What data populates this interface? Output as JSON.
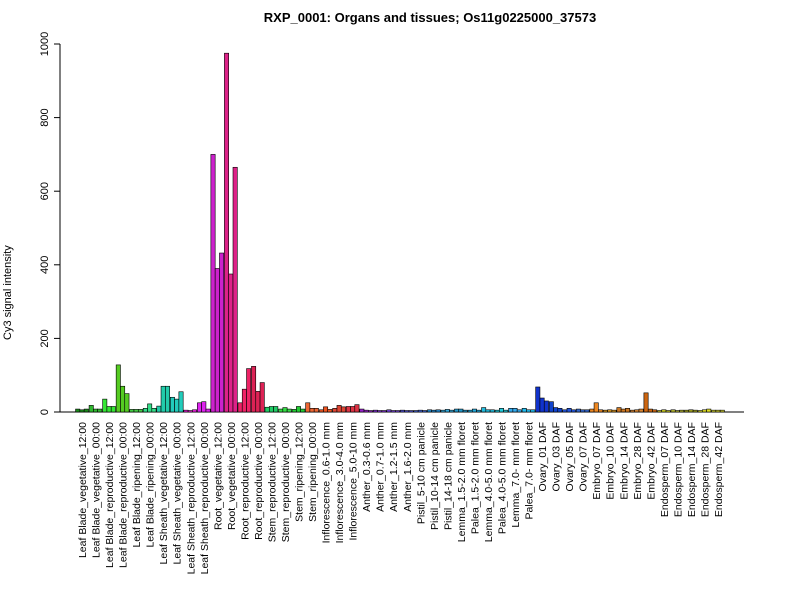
{
  "chart_data": {
    "type": "bar",
    "title": "RXP_0001: Organs and tissues; Os11g0225000_37573",
    "xlabel": "",
    "ylabel": "Cy3 signal intensity",
    "ylim": [
      0,
      1000
    ],
    "yticks": [
      0,
      200,
      400,
      600,
      800,
      1000
    ],
    "grid": false,
    "categories": [
      "Leaf Blade_vegetative_12:00",
      "Leaf Blade_vegetative_00:00",
      "Leaf Blade_reproductive_12:00",
      "Leaf Blade_reproductive_00:00",
      "Leaf Blade_ripening_12:00",
      "Leaf Blade_ripening_00:00",
      "Leaf Sheath_vegetative_12:00",
      "Leaf Sheath_vegetative_00:00",
      "Leaf Sheath_reproductive_12:00",
      "Leaf Sheath_reproductive_00:00",
      "Root_vegetative_12:00",
      "Root_vegetative_00:00",
      "Root_reproductive_12:00",
      "Root_reproductive_00:00",
      "Stem_reproductive_12:00",
      "Stem_reproductive_00:00",
      "Stem_ripening_12:00",
      "Stem_ripening_00:00",
      "Inflorescence_0.6-1.0 mm",
      "Inflorescence_3.0-4.0 mm",
      "Inflorescence_5.0-10 mm",
      "Anther_0.3-0.6 mm",
      "Anther_0.7-1.0 mm",
      "Anther_1.2-1.5 mm",
      "Anther_1.6-2.0 mm",
      "Pistil_5-10 cm panicle",
      "Pistil_10-14 cm panicle",
      "Pistil_14-18 cm panicle",
      "Lemma_1.5-2.0 mm floret",
      "Palea_1.5-2.0 mm floret",
      "Lemma_4.0-5.0 mm floret",
      "Palea_4.0-5.0 mm floret",
      "Lemma_7.0- mm floret",
      "Palea_7.0- mm floret",
      "Ovary_01 DAF",
      "Ovary_03 DAF",
      "Ovary_05 DAF",
      "Ovary_07 DAF",
      "Embryo_07 DAF",
      "Embryo_10 DAF",
      "Embryo_14 DAF",
      "Embryo_28 DAF",
      "Embryo_42 DAF",
      "Endosperm_07 DAF",
      "Endosperm_10 DAF",
      "Endosperm_14 DAF",
      "Endosperm_28 DAF",
      "Endosperm_42 DAF"
    ],
    "group_colors": [
      "#1a8a1a",
      "#2fb82f",
      "#33e633",
      "#55cc22",
      "#44cc44",
      "#33dd88",
      "#22ccaa",
      "#22ccbb",
      "#ee22dd",
      "#dd22ee",
      "#cc22cc",
      "#dd2288",
      "#ee2266",
      "#dd2255",
      "#22cc66",
      "#33dd44",
      "#22cc33",
      "#ee6633",
      "#ee5522",
      "#dd4433",
      "#dd3344",
      "#9922cc",
      "#8833dd",
      "#7744dd",
      "#5555dd",
      "#4466dd",
      "#2288cc",
      "#33aadd",
      "#2299cc",
      "#22aadd",
      "#22bbdd",
      "#22ccdd",
      "#33aaee",
      "#22bbee",
      "#1133cc",
      "#1144cc",
      "#2255dd",
      "#3366cc",
      "#ee8822",
      "#dd9922",
      "#cc7722",
      "#dd8833",
      "#cc6611",
      "#cccc22",
      "#bbbb33",
      "#aaaa22",
      "#dddd22",
      "#cccc33"
    ],
    "values": [
      [
        8,
        6,
        8
      ],
      [
        18,
        8,
        8
      ],
      [
        35,
        15,
        15
      ],
      [
        128,
        70,
        50
      ],
      [
        7,
        7,
        7
      ],
      [
        10,
        22,
        10
      ],
      [
        16,
        70,
        70
      ],
      [
        40,
        35,
        55
      ],
      [
        5,
        4,
        6
      ],
      [
        25,
        28,
        8
      ],
      [
        700,
        390,
        432
      ],
      [
        975,
        375,
        665
      ],
      [
        25,
        62,
        118
      ],
      [
        124,
        56,
        80
      ],
      [
        13,
        15,
        15
      ],
      [
        8,
        12,
        8
      ],
      [
        7,
        15,
        8
      ],
      [
        25,
        10,
        10
      ],
      [
        6,
        14,
        7
      ],
      [
        10,
        18,
        14
      ],
      [
        15,
        15,
        20
      ],
      [
        8,
        5,
        4
      ],
      [
        5,
        4,
        4
      ],
      [
        6,
        4,
        4
      ],
      [
        5,
        4,
        4
      ],
      [
        4,
        5,
        4
      ],
      [
        6,
        5,
        6
      ],
      [
        5,
        7,
        5
      ],
      [
        8,
        8,
        5
      ],
      [
        5,
        8,
        5
      ],
      [
        12,
        6,
        6
      ],
      [
        5,
        10,
        5
      ],
      [
        10,
        10,
        6
      ],
      [
        10,
        6,
        6
      ],
      [
        68,
        38,
        30
      ],
      [
        28,
        12,
        10
      ],
      [
        6,
        10,
        6
      ],
      [
        8,
        6,
        6
      ],
      [
        8,
        25,
        6
      ],
      [
        5,
        6,
        5
      ],
      [
        12,
        8,
        10
      ],
      [
        5,
        6,
        8
      ],
      [
        52,
        8,
        6
      ],
      [
        4,
        6,
        4
      ],
      [
        6,
        4,
        5
      ],
      [
        5,
        6,
        5
      ],
      [
        4,
        6,
        8
      ],
      [
        5,
        5,
        5
      ]
    ]
  }
}
